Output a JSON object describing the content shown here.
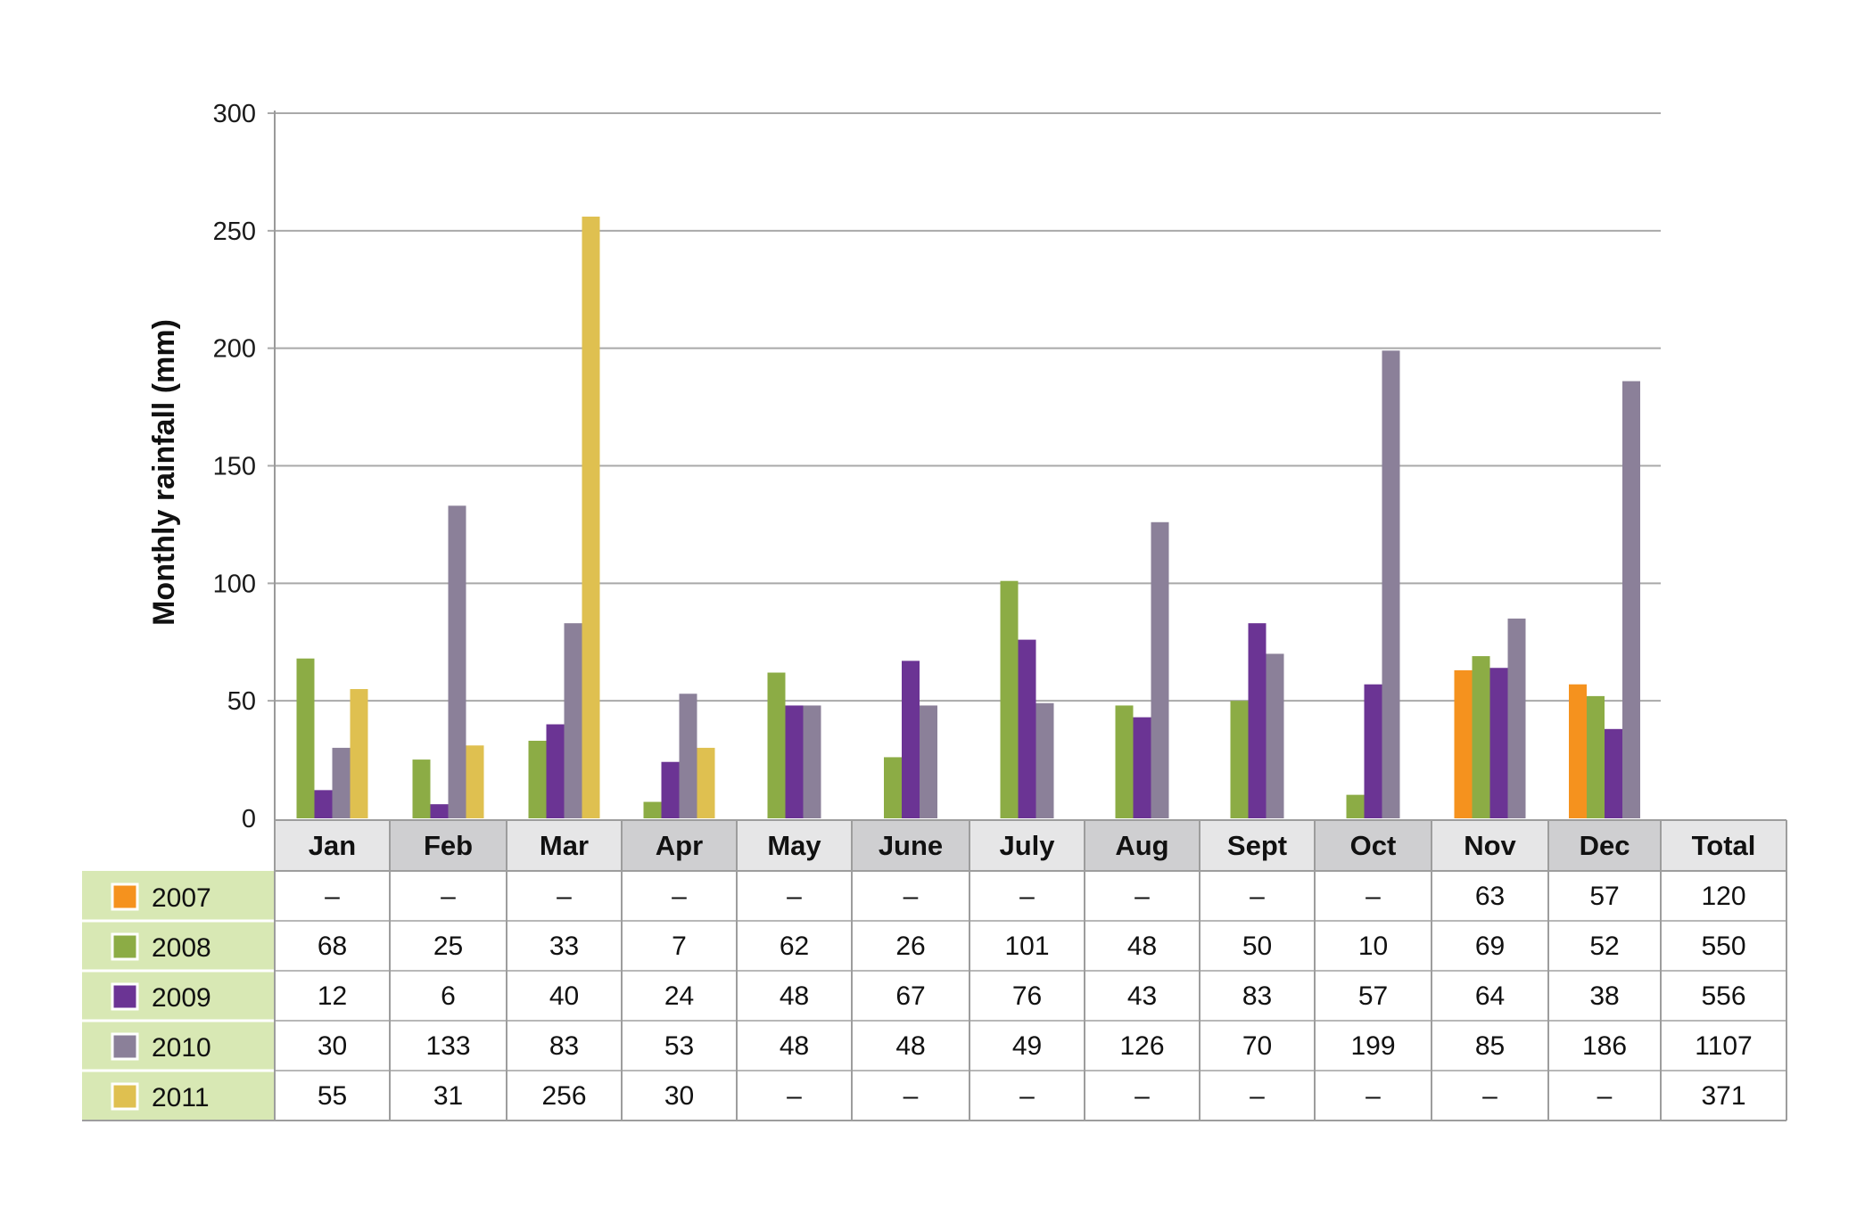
{
  "chart_data": {
    "type": "bar",
    "ylabel": "Monthly rainfall (mm)",
    "xlabel": "",
    "ylim": [
      0,
      300
    ],
    "yticks": [
      0,
      50,
      100,
      150,
      200,
      250,
      300
    ],
    "grid": true,
    "legend_placement": "left of data table",
    "categories": [
      "Jan",
      "Feb",
      "Mar",
      "Apr",
      "May",
      "June",
      "July",
      "Aug",
      "Sept",
      "Oct",
      "Nov",
      "Dec"
    ],
    "total_label": "Total",
    "missing_label": "–",
    "series": [
      {
        "name": "2007",
        "color": "#f5921e",
        "values": [
          null,
          null,
          null,
          null,
          null,
          null,
          null,
          null,
          null,
          null,
          63,
          57
        ],
        "total": 120
      },
      {
        "name": "2008",
        "color": "#8cac45",
        "values": [
          68,
          25,
          33,
          7,
          62,
          26,
          101,
          48,
          50,
          10,
          69,
          52
        ],
        "total": 550
      },
      {
        "name": "2009",
        "color": "#6b3494",
        "values": [
          12,
          6,
          40,
          24,
          48,
          67,
          76,
          43,
          83,
          57,
          64,
          38
        ],
        "total": 556
      },
      {
        "name": "2010",
        "color": "#8b8099",
        "values": [
          30,
          133,
          83,
          53,
          48,
          48,
          49,
          126,
          70,
          199,
          85,
          186
        ],
        "total": 1107
      },
      {
        "name": "2011",
        "color": "#dfc050",
        "values": [
          55,
          31,
          256,
          30,
          null,
          null,
          null,
          null,
          null,
          null,
          null,
          null
        ],
        "total": 371
      }
    ]
  }
}
